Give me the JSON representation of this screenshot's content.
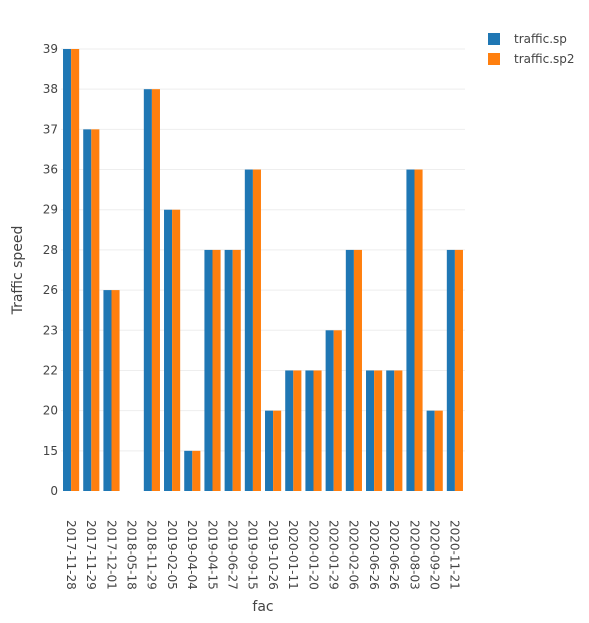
{
  "chart_data": {
    "type": "bar",
    "categories": [
      "2017-11-28",
      "2017-11-29",
      "2017-12-01",
      "2018-05-18",
      "2018-11-29",
      "2019-02-05",
      "2019-04-04",
      "2019-04-15",
      "2019-06-27",
      "2019-09-15",
      "2019-10-26",
      "2020-01-11",
      "2020-01-20",
      "2020-01-29",
      "2020-02-06",
      "2020-06-26",
      "2020-06-26",
      "2020-08-03",
      "2020-09-20",
      "2020-11-21"
    ],
    "y_ticks": [
      "0",
      "15",
      "20",
      "22",
      "23",
      "26",
      "28",
      "29",
      "36",
      "37",
      "38",
      "39"
    ],
    "series": [
      {
        "name": "traffic.sp",
        "color": "#1f77b4",
        "values": [
          "39",
          "37",
          "26",
          null,
          "38",
          "29",
          "15",
          "28",
          "28",
          "36",
          "20",
          "22",
          "22",
          "23",
          "28",
          "22",
          "22",
          "36",
          "20",
          "28"
        ]
      },
      {
        "name": "traffic.sp2",
        "color": "#ff7f0e",
        "values": [
          "39",
          "37",
          "26",
          null,
          "38",
          "29",
          "15",
          "28",
          "28",
          "36",
          "20",
          "22",
          "22",
          "23",
          "28",
          "22",
          "22",
          "36",
          "20",
          "28"
        ]
      }
    ],
    "xlabel": "fac",
    "ylabel": "Traffic speed",
    "y_axis_type": "category",
    "grid": true,
    "legend_position": "top-right"
  }
}
